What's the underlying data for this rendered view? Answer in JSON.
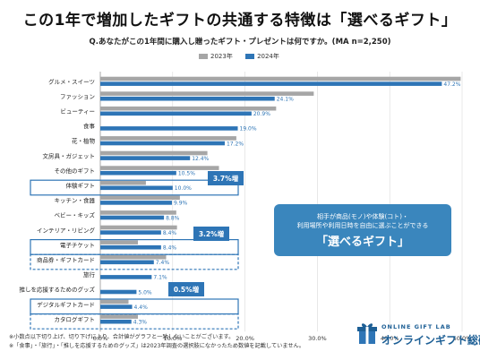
{
  "title": "この1年で増加したギフトの共通する特徴は「選べるギフト」",
  "question": "Q.あなたがこの1年間に購入し贈ったギフト・プレゼントは何ですか。(MA n=2,250)",
  "colors": {
    "y2023": "#a6a6a6",
    "y2024": "#2e75b6",
    "highlight": "#2e75b6",
    "callout": "#3a86bd",
    "badge": "#2e75b6"
  },
  "chart_data": {
    "type": "bar",
    "orientation": "horizontal",
    "categories": [
      "グルメ・スイーツ",
      "ファッション",
      "ビューティー",
      "食事",
      "花・植物",
      "文房具・ガジェット",
      "その他のギフト",
      "体験ギフト",
      "キッチン・食器",
      "ベビー・キッズ",
      "インテリア・リビング",
      "電子チケット",
      "商品券・ギフトカード",
      "旅行",
      "推しを応援するためのグッズ",
      "デジタルギフトカード",
      "カタログギフト"
    ],
    "series": [
      {
        "name": "2023年",
        "values": [
          49.8,
          29.5,
          24.3,
          null,
          18.8,
          14.8,
          16.4,
          6.3,
          11.0,
          10.5,
          10.6,
          5.2,
          9.1,
          null,
          null,
          3.9,
          5.2
        ]
      },
      {
        "name": "2024年",
        "values": [
          47.2,
          24.1,
          20.9,
          19.0,
          17.2,
          12.4,
          10.5,
          10.0,
          9.9,
          8.8,
          8.4,
          8.4,
          7.4,
          7.1,
          5.0,
          4.4,
          4.3
        ]
      }
    ],
    "value_labels": [
      "47.2%",
      "24.1%",
      "20.9%",
      "19.0%",
      "17.2%",
      "12.4%",
      "10.5%",
      "10.0%",
      "9.9%",
      "8.8%",
      "8.4%",
      "8.4%",
      "7.4%",
      "7.1%",
      "5.0%",
      "4.4%",
      "4.3%"
    ],
    "xlim": [
      0,
      50
    ],
    "x_ticks": [
      "0.0%",
      "10.0%",
      "20.0%",
      "30.0%",
      "40.0%",
      "50.0%"
    ],
    "legend_position": "top",
    "grid": true,
    "highlighted_categories": [
      "体験ギフト",
      "電子チケット",
      "商品券・ギフトカード",
      "デジタルギフトカード",
      "カタログギフト"
    ],
    "annotations": [
      {
        "text": "3.7%増",
        "category": "体験ギフト"
      },
      {
        "text": "3.2%増",
        "category": "電子チケット"
      },
      {
        "text": "0.5%増",
        "category": "デジタルギフトカード"
      }
    ]
  },
  "callout": {
    "line1": "相手が商品(モノ)や体験(コト)・",
    "line2": "利用場所や利用日時を自由に選ぶことができる",
    "line3": "「選べるギフト」"
  },
  "footnotes": [
    "※小数点以下切り上げ、切り下げにより、合計値がグラフと一致しないことがございます。",
    "※「食事」・「旅行」・「推しを応援するためのグッズ」は2023年調査の選択肢になかったため数値を記載していません。"
  ],
  "logo": {
    "sub": "ONLINE GIFT LAB",
    "main": "オンラインギフト総研"
  }
}
